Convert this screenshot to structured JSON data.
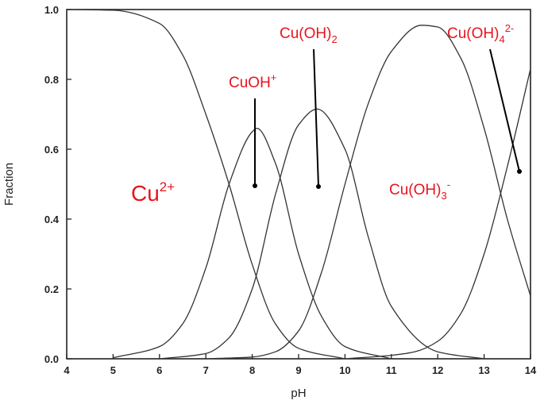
{
  "chart_data": {
    "type": "line",
    "xlabel": "pH",
    "ylabel": "Fraction",
    "xlim": [
      4,
      14
    ],
    "ylim": [
      0,
      1.0
    ],
    "xticks": [
      "4",
      "5",
      "6",
      "7",
      "8",
      "9",
      "10",
      "11",
      "12",
      "13",
      "14"
    ],
    "yticks": [
      "0.0",
      "0.2",
      "0.4",
      "0.6",
      "0.8",
      "1.0"
    ],
    "grid": false,
    "legend": "none",
    "series": [
      {
        "name": "Cu2+",
        "x": [
          4,
          5,
          6,
          6.5,
          7,
          7.5,
          8,
          8.5,
          9,
          10
        ],
        "y": [
          1.0,
          0.998,
          0.96,
          0.87,
          0.7,
          0.5,
          0.27,
          0.1,
          0.03,
          0.0
        ]
      },
      {
        "name": "CuOH+",
        "x": [
          5,
          6,
          6.5,
          7,
          7.5,
          8,
          8.1,
          8.5,
          9,
          9.5,
          10,
          11
        ],
        "y": [
          0.003,
          0.035,
          0.1,
          0.26,
          0.5,
          0.65,
          0.66,
          0.56,
          0.3,
          0.12,
          0.035,
          0.0
        ]
      },
      {
        "name": "Cu(OH)2",
        "x": [
          6,
          7,
          7.5,
          8,
          8.5,
          9,
          9.4,
          10,
          10.5,
          11,
          12,
          13
        ],
        "y": [
          0.0,
          0.015,
          0.06,
          0.2,
          0.47,
          0.67,
          0.715,
          0.6,
          0.35,
          0.15,
          0.02,
          0.0
        ]
      },
      {
        "name": "Cu(OH)3-",
        "x": [
          7,
          8,
          8.5,
          9,
          9.5,
          10,
          10.5,
          11,
          11.65,
          12,
          12.5,
          13,
          13.5,
          14
        ],
        "y": [
          0.0,
          0.005,
          0.02,
          0.08,
          0.25,
          0.5,
          0.73,
          0.88,
          0.955,
          0.95,
          0.86,
          0.66,
          0.4,
          0.18
        ]
      },
      {
        "name": "Cu(OH)4^2-",
        "x": [
          10,
          11,
          11.5,
          12,
          12.5,
          13,
          13.5,
          14
        ],
        "y": [
          0.0,
          0.01,
          0.02,
          0.05,
          0.13,
          0.3,
          0.55,
          0.83
        ]
      }
    ]
  },
  "annotations": {
    "cu2": {
      "base": "Cu",
      "sup": "2+"
    },
    "cuoh": {
      "base": "CuOH",
      "sup": "+"
    },
    "cuoh2": {
      "base": "Cu(OH)",
      "sub": "2"
    },
    "cuoh3": {
      "base": "Cu(OH)",
      "sub": "3",
      "sup": "-"
    },
    "cuoh4": {
      "base": "Cu(OH)",
      "sub": "4",
      "sup": "2-"
    }
  },
  "colors": {
    "annotation": "#e8141c",
    "curve": "#333333"
  }
}
